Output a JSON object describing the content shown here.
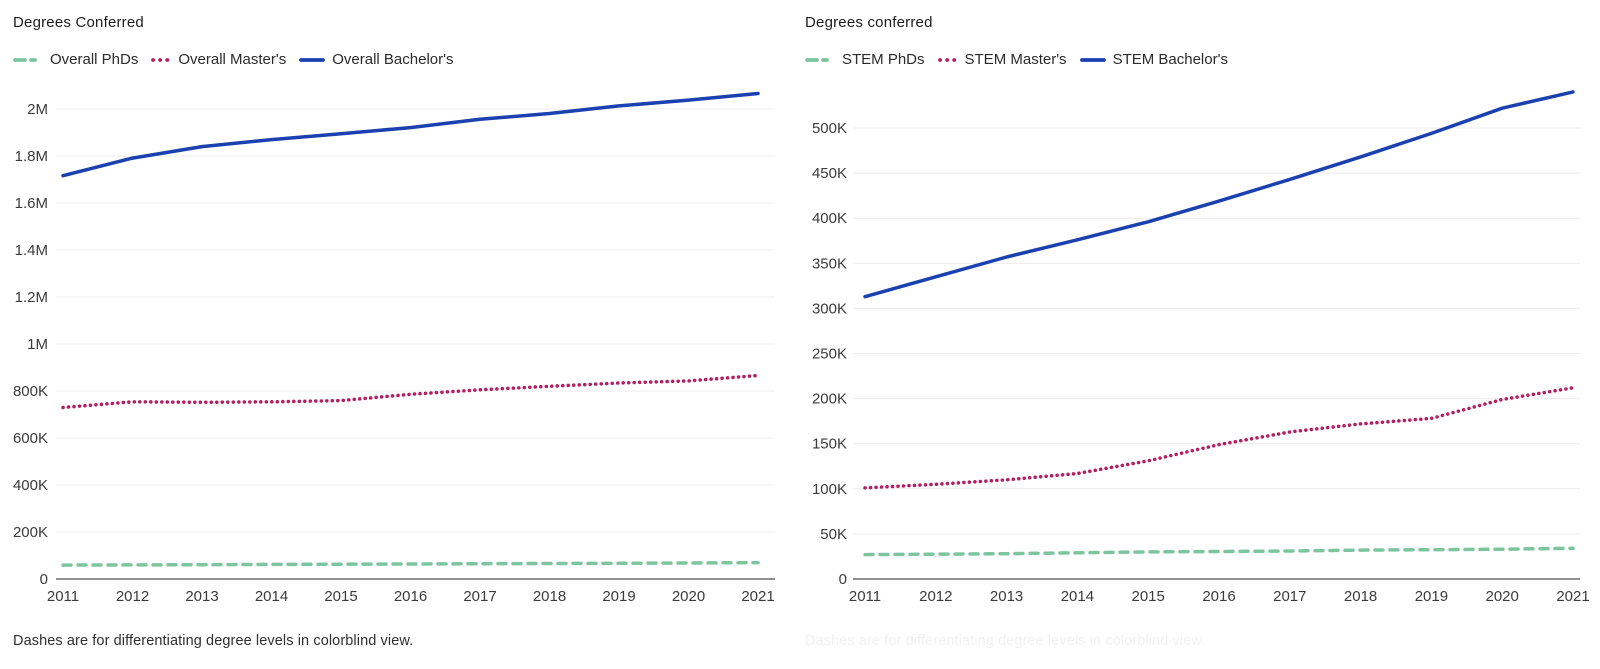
{
  "chart_data": [
    {
      "type": "line",
      "title": "Degrees Conferred",
      "footnote": "Dashes are for differentiating degree levels in colorblind view.",
      "x": [
        2011,
        2012,
        2013,
        2014,
        2015,
        2016,
        2017,
        2018,
        2019,
        2020,
        2021
      ],
      "series": [
        {
          "name": "Overall PhDs",
          "color": "#7cc5a0",
          "style": "dashed",
          "values": [
            59000,
            60000,
            61000,
            62000,
            63000,
            64000,
            65000,
            66000,
            67000,
            68000,
            70000
          ]
        },
        {
          "name": "Overall Master's",
          "color": "#b41e5e",
          "style": "dotted",
          "values": [
            730000,
            754000,
            752000,
            754000,
            759000,
            786000,
            805000,
            820000,
            834000,
            843000,
            866000
          ]
        },
        {
          "name": "Overall Bachelor's",
          "color": "#1b41b0",
          "style": "solid",
          "values": [
            1716000,
            1791000,
            1840000,
            1870000,
            1895000,
            1921000,
            1956000,
            1981000,
            2013000,
            2038000,
            2066000
          ]
        }
      ],
      "yticks": [
        {
          "v": 0,
          "label": "0"
        },
        {
          "v": 200000,
          "label": "200K"
        },
        {
          "v": 400000,
          "label": "400K"
        },
        {
          "v": 600000,
          "label": "600K"
        },
        {
          "v": 800000,
          "label": "800K"
        },
        {
          "v": 1000000,
          "label": "1M"
        },
        {
          "v": 1200000,
          "label": "1.2M"
        },
        {
          "v": 1400000,
          "label": "1.4M"
        },
        {
          "v": 1600000,
          "label": "1.6M"
        },
        {
          "v": 1800000,
          "label": "1.8M"
        },
        {
          "v": 2000000,
          "label": "2M"
        }
      ],
      "ylim": [
        0,
        2200000
      ],
      "grid": true,
      "legend_position": "top"
    },
    {
      "type": "line",
      "title": "Degrees conferred",
      "footnote": "Dashes are for differentiating degree levels in colorblind view.",
      "x": [
        2011,
        2012,
        2013,
        2014,
        2015,
        2016,
        2017,
        2018,
        2019,
        2020,
        2021
      ],
      "series": [
        {
          "name": "STEM PhDs",
          "color": "#7cc5a0",
          "style": "dashed",
          "values": [
            27000,
            27500,
            28000,
            29000,
            30000,
            30500,
            31000,
            32000,
            32500,
            33000,
            34000
          ]
        },
        {
          "name": "STEM Master's",
          "color": "#b41e5e",
          "style": "dotted",
          "values": [
            101000,
            105000,
            110000,
            117000,
            131000,
            149000,
            163000,
            172000,
            178000,
            199000,
            212000
          ]
        },
        {
          "name": "STEM Bachelor's",
          "color": "#1b41b0",
          "style": "solid",
          "values": [
            313000,
            335000,
            357000,
            376000,
            396000,
            419000,
            443000,
            468000,
            494000,
            522000,
            540000
          ]
        }
      ],
      "yticks": [
        {
          "v": 0,
          "label": "0"
        },
        {
          "v": 50000,
          "label": "50K"
        },
        {
          "v": 100000,
          "label": "100K"
        },
        {
          "v": 150000,
          "label": "150K"
        },
        {
          "v": 200000,
          "label": "200K"
        },
        {
          "v": 250000,
          "label": "250K"
        },
        {
          "v": 300000,
          "label": "300K"
        },
        {
          "v": 350000,
          "label": "350K"
        },
        {
          "v": 400000,
          "label": "400K"
        },
        {
          "v": 450000,
          "label": "450K"
        },
        {
          "v": 500000,
          "label": "500K"
        }
      ],
      "ylim": [
        0,
        560000
      ],
      "grid": true,
      "legend_position": "top"
    }
  ],
  "colors": {
    "phd_green": "#7cc5a0",
    "masters_crimson": "#b41e5e",
    "bachelors_blue": "#1b41b0",
    "gridline": "#ececec",
    "axis": "#6b6b6b"
  }
}
